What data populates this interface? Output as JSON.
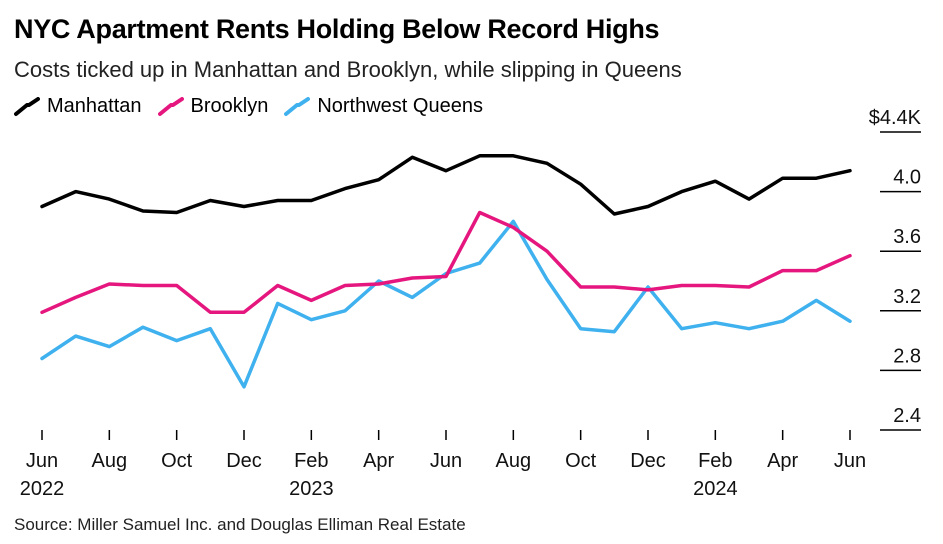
{
  "header": {
    "title": "NYC Apartment Rents Holding Below Record Highs",
    "subtitle": "Costs ticked up in Manhattan and Brooklyn, while slipping in Queens"
  },
  "legend": [
    {
      "label": "Manhattan",
      "color": "#000000"
    },
    {
      "label": "Brooklyn",
      "color": "#e5177f"
    },
    {
      "label": "Northwest Queens",
      "color": "#3fb1ee"
    }
  ],
  "source": "Source: Miller Samuel Inc. and Douglas Elliman Real Estate",
  "chart_data": {
    "type": "line",
    "x": [
      "2022-06",
      "2022-07",
      "2022-08",
      "2022-09",
      "2022-10",
      "2022-11",
      "2022-12",
      "2023-01",
      "2023-02",
      "2023-03",
      "2023-04",
      "2023-05",
      "2023-06",
      "2023-07",
      "2023-08",
      "2023-09",
      "2023-10",
      "2023-11",
      "2023-12",
      "2024-01",
      "2024-02",
      "2024-03",
      "2024-04",
      "2024-05",
      "2024-06"
    ],
    "series": [
      {
        "name": "Manhattan",
        "color": "#000000",
        "values": [
          3.9,
          4.0,
          3.95,
          3.87,
          3.86,
          3.94,
          3.9,
          3.94,
          3.94,
          4.02,
          4.08,
          4.23,
          4.14,
          4.24,
          4.24,
          4.19,
          4.05,
          3.85,
          3.9,
          4.0,
          4.07,
          3.95,
          4.09,
          4.09,
          4.14
        ]
      },
      {
        "name": "Brooklyn",
        "color": "#e5177f",
        "values": [
          3.19,
          3.29,
          3.38,
          3.37,
          3.37,
          3.19,
          3.19,
          3.37,
          3.27,
          3.37,
          3.38,
          3.42,
          3.43,
          3.86,
          3.76,
          3.6,
          3.36,
          3.36,
          3.34,
          3.37,
          3.37,
          3.36,
          3.47,
          3.47,
          3.57
        ]
      },
      {
        "name": "Northwest Queens",
        "color": "#3fb1ee",
        "values": [
          2.88,
          3.03,
          2.96,
          3.09,
          3.0,
          3.08,
          2.69,
          3.25,
          3.14,
          3.2,
          3.4,
          3.29,
          3.45,
          3.52,
          3.8,
          3.41,
          3.08,
          3.06,
          3.36,
          3.08,
          3.12,
          3.08,
          3.13,
          3.27,
          3.13
        ]
      }
    ],
    "y_ticks": [
      {
        "value": 4.4,
        "label": "$4.4K"
      },
      {
        "value": 4.0,
        "label": "4.0"
      },
      {
        "value": 3.6,
        "label": "3.6"
      },
      {
        "value": 3.2,
        "label": "3.2"
      },
      {
        "value": 2.8,
        "label": "2.8"
      },
      {
        "value": 2.4,
        "label": "2.4"
      }
    ],
    "x_ticks": [
      {
        "index": 0,
        "label": "Jun",
        "year": "2022"
      },
      {
        "index": 2,
        "label": "Aug",
        "year": ""
      },
      {
        "index": 4,
        "label": "Oct",
        "year": ""
      },
      {
        "index": 6,
        "label": "Dec",
        "year": ""
      },
      {
        "index": 8,
        "label": "Feb",
        "year": "2023"
      },
      {
        "index": 10,
        "label": "Apr",
        "year": ""
      },
      {
        "index": 12,
        "label": "Jun",
        "year": ""
      },
      {
        "index": 14,
        "label": "Aug",
        "year": ""
      },
      {
        "index": 16,
        "label": "Oct",
        "year": ""
      },
      {
        "index": 18,
        "label": "Dec",
        "year": ""
      },
      {
        "index": 20,
        "label": "Feb",
        "year": "2024"
      },
      {
        "index": 22,
        "label": "Apr",
        "year": ""
      },
      {
        "index": 24,
        "label": "Jun",
        "year": ""
      }
    ],
    "ylim": [
      2.4,
      4.4
    ],
    "y_axis_position": "right",
    "grid": false,
    "legend_position": "top-left"
  }
}
